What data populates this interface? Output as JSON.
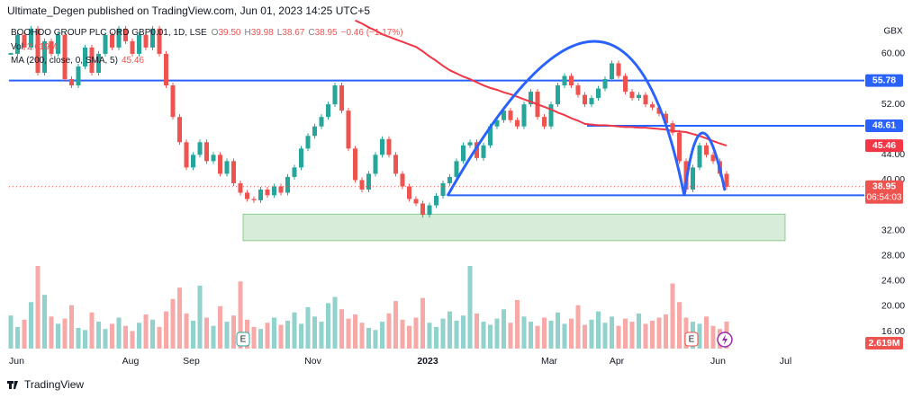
{
  "header": {
    "published": "Ultimate_Degen published on TradingView.com, Jun 01, 2023 14:25 UTC+5"
  },
  "footer": {
    "brand": "TradingView"
  },
  "chart_data": {
    "type": "candlestick",
    "currency": "GBX",
    "ohlc": [
      [
        "O",
        "39.50"
      ],
      [
        "H",
        "39.98"
      ],
      [
        "L",
        "38.67"
      ],
      [
        "C",
        "38.95"
      ]
    ],
    "change": "−0.46 (−1.17%)",
    "categories": [
      "Jun",
      null,
      null,
      null,
      null,
      null,
      null,
      null,
      null,
      null,
      null,
      null,
      null,
      null,
      null,
      null,
      null,
      null,
      "Aug",
      null,
      null,
      null,
      null,
      null,
      null,
      null,
      null,
      "Sep",
      null,
      null,
      null,
      null,
      null,
      null,
      null,
      null,
      null,
      null,
      null,
      null,
      null,
      null,
      null,
      null,
      null,
      "Nov",
      null,
      null,
      null,
      null,
      null,
      null,
      null,
      null,
      null,
      null,
      null,
      null,
      null,
      null,
      null,
      null,
      "2023",
      null,
      null,
      null,
      null,
      null,
      null,
      null,
      null,
      null,
      null,
      null,
      null,
      null,
      null,
      null,
      null,
      null,
      "Mar",
      null,
      null,
      null,
      null,
      null,
      null,
      null,
      null,
      null,
      "Apr",
      null,
      null,
      null,
      null,
      null,
      null,
      null,
      null,
      null,
      null,
      null,
      null,
      null,
      null,
      "Jun",
      null,
      null,
      null,
      null,
      null,
      null,
      null,
      null,
      null,
      "Jul"
    ],
    "ylim": [
      13.3,
      65.4
    ],
    "yticks": [
      {
        "value": 60,
        "label": "60.00"
      },
      {
        "value": 52,
        "label": "52.00"
      },
      {
        "value": 44,
        "label": "44.00"
      },
      {
        "value": 40,
        "label": "40.00"
      },
      {
        "value": 32,
        "label": "32.00"
      },
      {
        "value": 28,
        "label": "28.00"
      },
      {
        "value": 24,
        "label": "24.00"
      },
      {
        "value": 20,
        "label": "20.00"
      },
      {
        "value": 16,
        "label": "16.00"
      }
    ],
    "series": [
      {
        "name": "BOOHOO GROUP PLC ORD GBP0.01, 1D, LSE",
        "color_up": "#26a69a",
        "color_down": "#ef5350",
        "values": [
          60,
          63,
          61,
          64,
          57,
          62,
          60,
          63,
          56,
          55,
          58,
          61,
          57,
          60,
          63,
          61,
          64,
          62,
          60,
          63,
          61,
          64,
          60,
          55,
          50,
          46,
          42,
          44,
          46,
          43,
          44,
          41,
          43,
          39.5,
          38,
          37,
          36.8,
          38.5,
          37.6,
          39,
          38,
          40.5,
          42,
          45,
          47,
          48.5,
          50,
          52,
          55,
          51,
          45,
          40,
          38.5,
          41,
          44,
          46.5,
          44,
          41,
          39,
          37,
          36.3,
          34.5,
          36,
          37.5,
          39.5,
          40.5,
          43,
          45.5,
          46,
          43.5,
          45.5,
          48.5,
          49.5,
          51,
          49.5,
          48.5,
          52,
          54,
          50,
          48.5,
          52,
          55,
          56.5,
          55,
          53.5,
          52,
          53,
          54.5,
          56,
          58.5,
          56.5,
          54,
          53,
          53.5,
          52,
          51.5,
          50.5,
          49,
          47.5,
          43,
          38.5,
          42,
          45.5,
          44,
          43,
          41,
          38.95,
          null,
          null,
          null,
          null,
          null,
          null,
          null,
          null,
          null
        ]
      },
      {
        "name": "MA (200, close, 0, SMA, 5)",
        "color": "#f23645",
        "values": [
          null,
          null,
          null,
          null,
          null,
          null,
          null,
          null,
          null,
          null,
          null,
          null,
          null,
          null,
          null,
          null,
          null,
          null,
          null,
          null,
          null,
          null,
          null,
          null,
          null,
          null,
          null,
          null,
          null,
          null,
          null,
          null,
          null,
          null,
          null,
          null,
          null,
          null,
          null,
          null,
          null,
          null,
          null,
          null,
          null,
          null,
          null,
          null,
          null,
          null,
          null,
          65.3,
          64.8,
          64.2,
          63.7,
          63.1,
          62.7,
          62.3,
          61.9,
          61.5,
          61.1,
          60.4,
          59.6,
          58.9,
          58.1,
          57.4,
          56.9,
          56.4,
          56.0,
          55.5,
          55.0,
          54.6,
          54.3,
          53.9,
          53.6,
          53.2,
          52.8,
          52.4,
          52.0,
          51.6,
          51.2,
          50.7,
          50.3,
          49.8,
          49.4,
          48.9,
          48.8,
          48.7,
          48.7,
          48.6,
          48.5,
          48.4,
          48.4,
          48.3,
          48.3,
          48.2,
          48.1,
          48.0,
          47.8,
          47.7,
          47.6,
          47.3,
          47.0,
          46.6,
          46.2,
          45.8,
          45.46,
          null,
          null,
          null,
          null,
          null,
          null,
          null,
          null,
          null
        ]
      }
    ],
    "volume": {
      "name": "Vol",
      "color_up": "#26a69a",
      "color_down": "#ef5350",
      "last_value_label": "2.619M",
      "values": [
        3.2,
        2.1,
        2.8,
        4.5,
        8.0,
        5.2,
        3.1,
        2.4,
        2.9,
        4.2,
        2.0,
        1.8,
        3.5,
        2.6,
        1.9,
        2.4,
        3.0,
        2.2,
        1.7,
        2.5,
        3.3,
        2.8,
        2.1,
        3.6,
        4.8,
        5.9,
        3.4,
        2.7,
        6.1,
        3.0,
        2.2,
        4.1,
        2.6,
        3.2,
        6.5,
        2.8,
        2.1,
        1.9,
        2.5,
        3.0,
        2.3,
        2.7,
        3.5,
        2.4,
        4.0,
        3.1,
        2.6,
        4.4,
        5.0,
        3.8,
        2.9,
        3.3,
        2.5,
        2.0,
        1.8,
        2.6,
        3.4,
        4.6,
        2.8,
        2.2,
        3.0,
        4.9,
        2.5,
        2.1,
        2.9,
        3.6,
        2.7,
        3.2,
        8.0,
        3.4,
        2.6,
        2.3,
        2.9,
        3.8,
        2.5,
        4.7,
        3.1,
        2.6,
        2.2,
        3.0,
        2.7,
        3.5,
        2.4,
        2.9,
        4.2,
        2.3,
        2.8,
        3.6,
        2.5,
        3.1,
        2.2,
        2.9,
        2.6,
        3.4,
        2.4,
        2.7,
        3.0,
        3.3,
        6.3,
        4.5,
        3.0,
        2.6,
        2.4,
        3.1,
        2.2,
        1.9,
        2.619,
        null,
        null,
        null,
        null,
        null,
        null,
        null,
        null,
        null
      ]
    },
    "hlines": [
      {
        "value": 55.78,
        "color": "#2962ff"
      },
      {
        "value": 48.61,
        "color": "#2962ff"
      },
      {
        "value": 37.59,
        "color": "#2962ff"
      }
    ],
    "zone": {
      "ylim": [
        30.4,
        34.6
      ],
      "color": "#4caf50"
    },
    "countdown": "06:54:03",
    "markers": [
      "E",
      "E"
    ]
  }
}
